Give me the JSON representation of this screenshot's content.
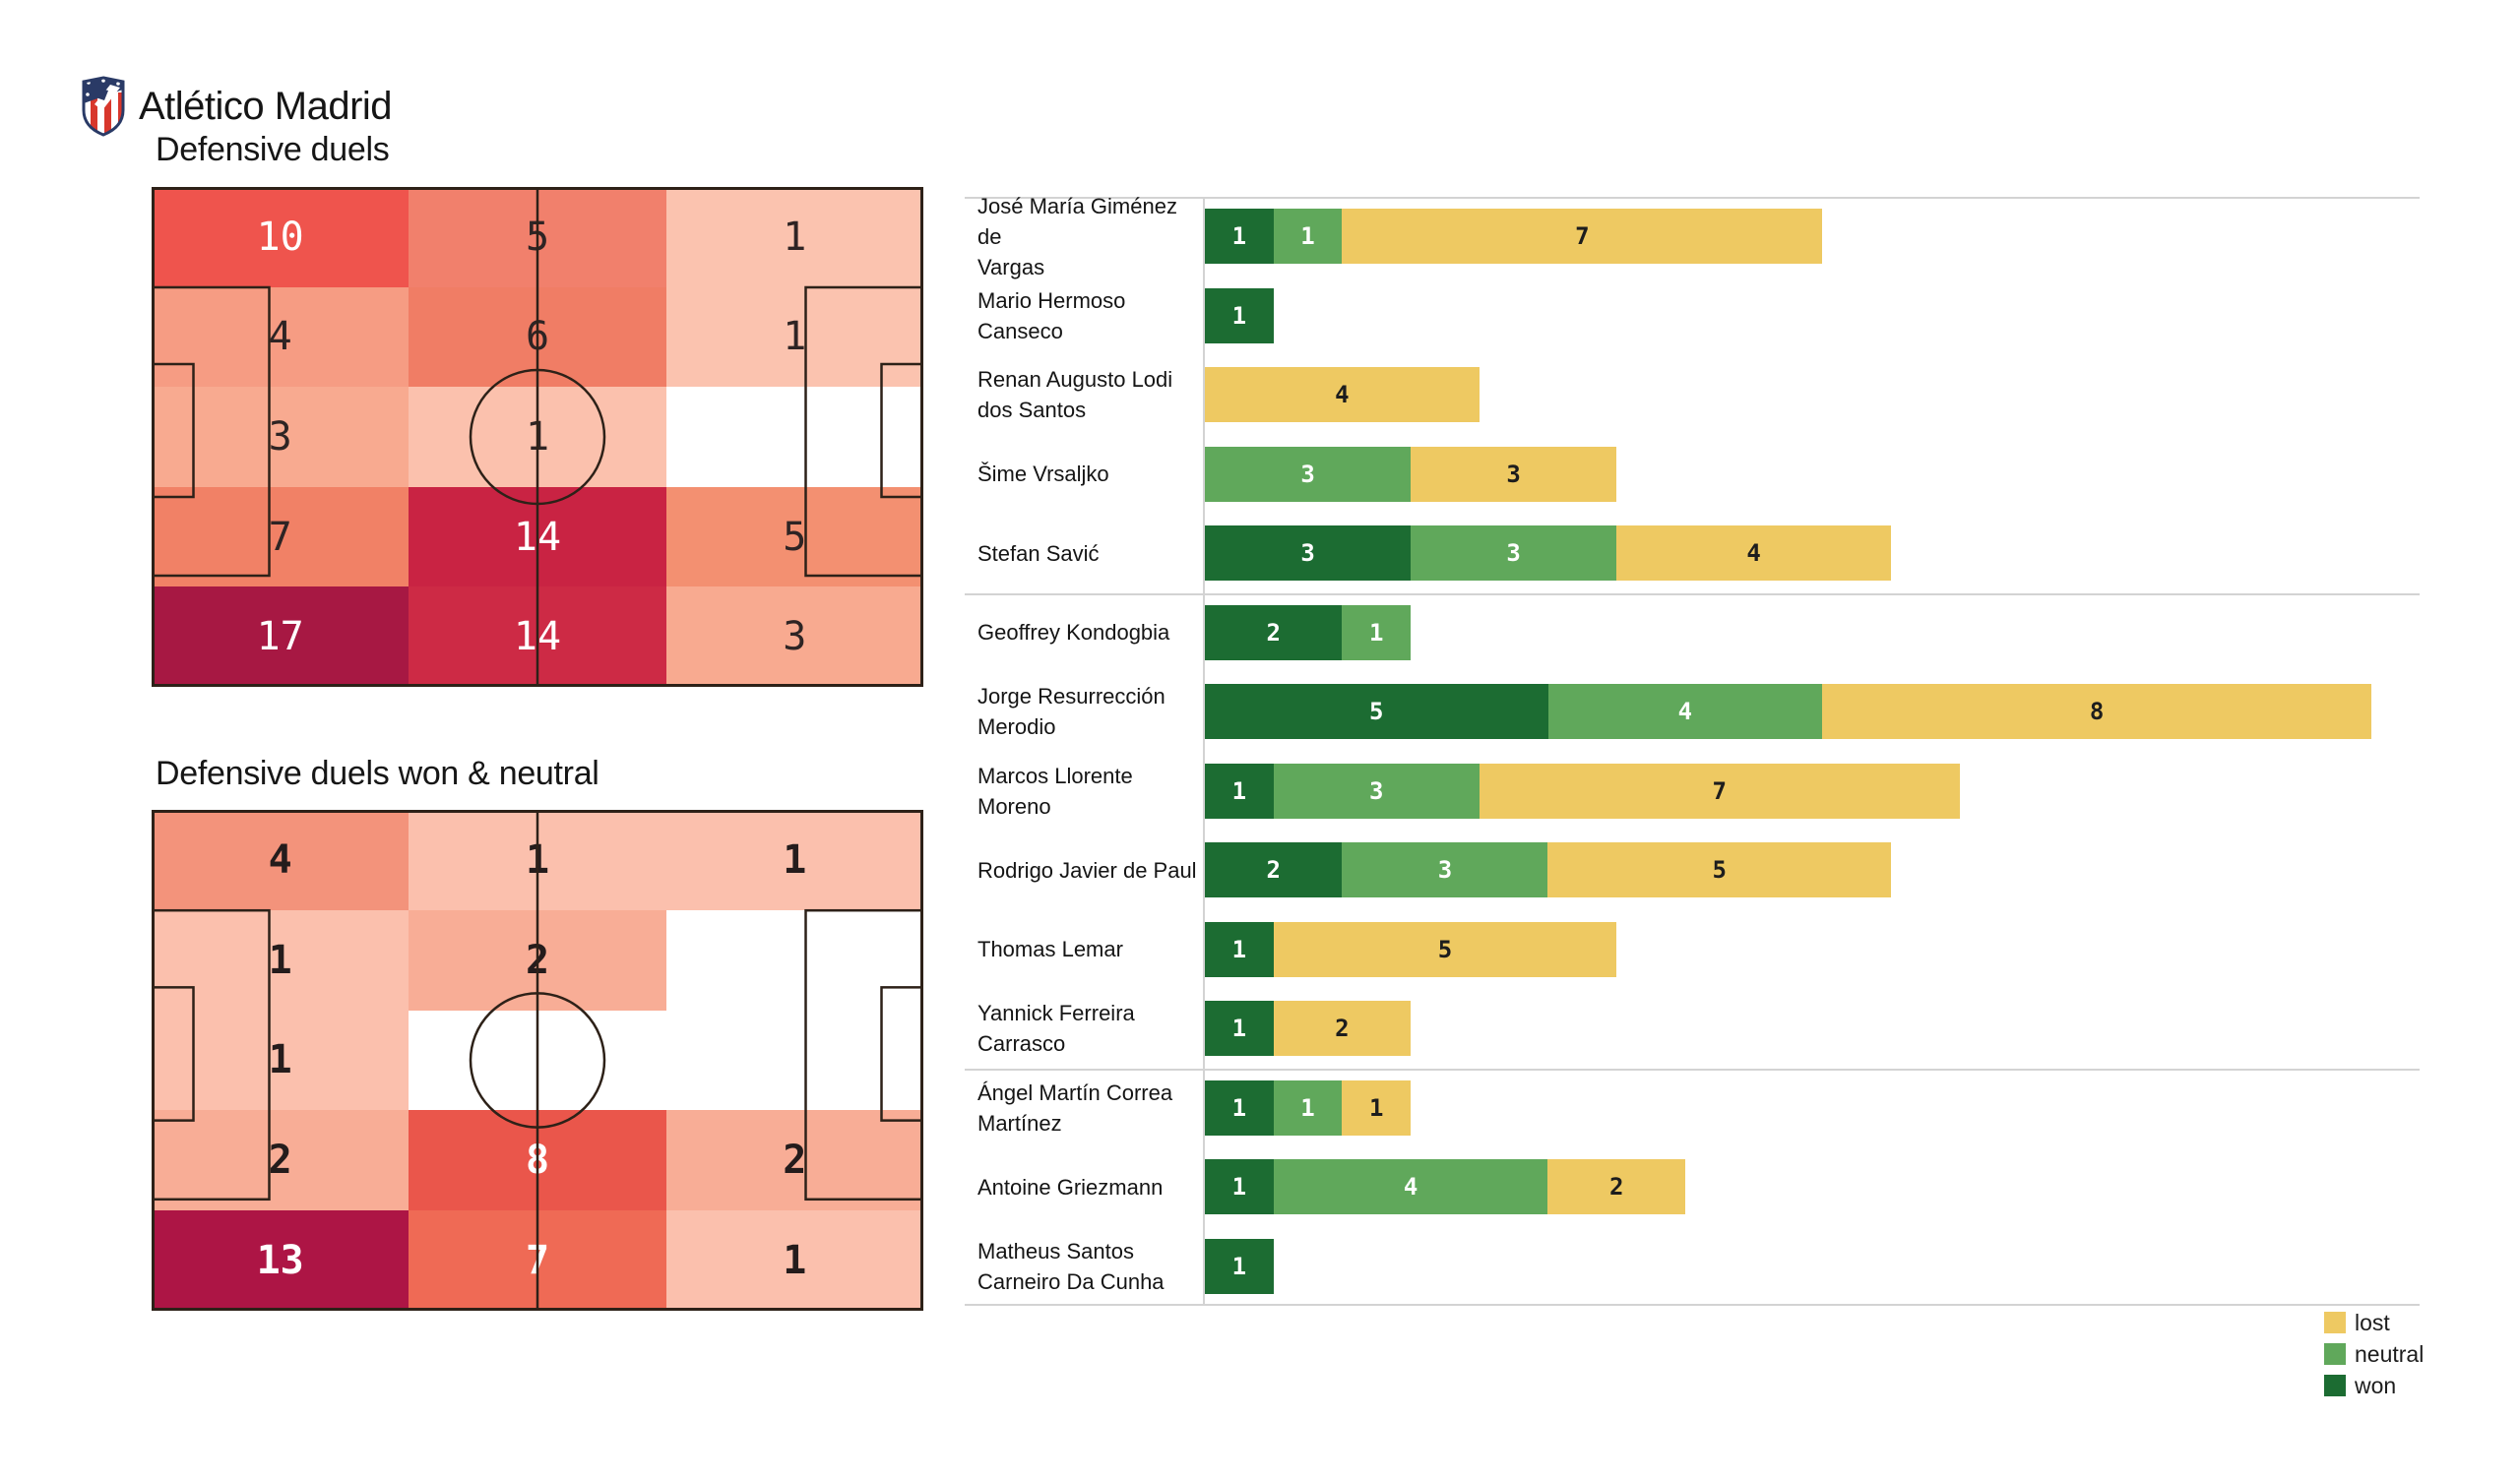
{
  "team": {
    "name": "Atlético Madrid"
  },
  "colors": {
    "won": "#1c6c32",
    "neutral": "#60a85b",
    "lost": "#eec962",
    "pitch_line": "#2d2118",
    "separator": "#d3d3d3",
    "text_dark": "#1d1d1d"
  },
  "heatmaps": [
    {
      "title": "Defensive duels",
      "bold_numbers": false,
      "cells": [
        [
          {
            "v": "10",
            "bg": "#ef544d",
            "fg": "#ffffff"
          },
          {
            "v": "5",
            "bg": "#f1806c",
            "fg": "#2e2424"
          },
          {
            "v": "1",
            "bg": "#fbc3af",
            "fg": "#2e2424"
          }
        ],
        [
          {
            "v": "4",
            "bg": "#f69c83",
            "fg": "#2e2424"
          },
          {
            "v": "6",
            "bg": "#f07d65",
            "fg": "#2e2424"
          },
          {
            "v": "1",
            "bg": "#fbc3af",
            "fg": "#2e2424"
          }
        ],
        [
          {
            "v": "3",
            "bg": "#f8aa90",
            "fg": "#2e2424"
          },
          {
            "v": "1",
            "bg": "#fbc1ad",
            "fg": "#2e2424"
          },
          {
            "v": "",
            "bg": "#ffffff",
            "fg": "#2e2424"
          }
        ],
        [
          {
            "v": "7",
            "bg": "#f18166",
            "fg": "#2e2424"
          },
          {
            "v": "14",
            "bg": "#c92343",
            "fg": "#ffffff"
          },
          {
            "v": "5",
            "bg": "#f39071",
            "fg": "#2e2424"
          }
        ],
        [
          {
            "v": "17",
            "bg": "#a71843",
            "fg": "#ffffff"
          },
          {
            "v": "14",
            "bg": "#cd2a45",
            "fg": "#ffffff"
          },
          {
            "v": "3",
            "bg": "#f8aa90",
            "fg": "#2e2424"
          }
        ]
      ]
    },
    {
      "title": "Defensive duels won & neutral",
      "bold_numbers": true,
      "cells": [
        [
          {
            "v": "4",
            "bg": "#f3937b",
            "fg": "#241c1c"
          },
          {
            "v": "1",
            "bg": "#fbc0ad",
            "fg": "#241c1c"
          },
          {
            "v": "1",
            "bg": "#fbc0ad",
            "fg": "#241c1c"
          }
        ],
        [
          {
            "v": "1",
            "bg": "#fbc0ad",
            "fg": "#241c1c"
          },
          {
            "v": "2",
            "bg": "#f8ad96",
            "fg": "#241c1c"
          },
          {
            "v": "",
            "bg": "#ffffff",
            "fg": "#241c1c"
          }
        ],
        [
          {
            "v": "1",
            "bg": "#fbc0ad",
            "fg": "#241c1c"
          },
          {
            "v": "",
            "bg": "#ffffff",
            "fg": "#241c1c"
          },
          {
            "v": "",
            "bg": "#ffffff",
            "fg": "#241c1c"
          }
        ],
        [
          {
            "v": "2",
            "bg": "#f8ad96",
            "fg": "#241c1c"
          },
          {
            "v": "8",
            "bg": "#ea564b",
            "fg": "#ffffff"
          },
          {
            "v": "2",
            "bg": "#f8ad96",
            "fg": "#241c1c"
          }
        ],
        [
          {
            "v": "13",
            "bg": "#ad1545",
            "fg": "#ffffff"
          },
          {
            "v": "7",
            "bg": "#ef6a55",
            "fg": "#ffffff"
          },
          {
            "v": "1",
            "bg": "#fbc0ad",
            "fg": "#241c1c"
          }
        ]
      ]
    }
  ],
  "duel_chart": {
    "players": [
      {
        "name_lines": [
          "José María Giménez de",
          "Vargas"
        ],
        "won": 1,
        "neutral": 1,
        "lost": 7
      },
      {
        "name_lines": [
          "Mario Hermoso",
          "Canseco"
        ],
        "won": 1,
        "neutral": 0,
        "lost": 0
      },
      {
        "name_lines": [
          "Renan Augusto Lodi",
          "dos Santos"
        ],
        "won": 0,
        "neutral": 0,
        "lost": 4
      },
      {
        "name_lines": [
          "Šime Vrsaljko"
        ],
        "won": 0,
        "neutral": 3,
        "lost": 3
      },
      {
        "name_lines": [
          "Stefan Savić"
        ],
        "won": 3,
        "neutral": 3,
        "lost": 4
      },
      {
        "name_lines": [
          "Geoffrey Kondogbia"
        ],
        "won": 2,
        "neutral": 1,
        "lost": 0
      },
      {
        "name_lines": [
          "Jorge Resurrección",
          "Merodio"
        ],
        "won": 5,
        "neutral": 4,
        "lost": 8
      },
      {
        "name_lines": [
          "Marcos Llorente",
          "Moreno"
        ],
        "won": 1,
        "neutral": 3,
        "lost": 7
      },
      {
        "name_lines": [
          "Rodrigo Javier de Paul"
        ],
        "won": 2,
        "neutral": 3,
        "lost": 5
      },
      {
        "name_lines": [
          "Thomas Lemar"
        ],
        "won": 1,
        "neutral": 0,
        "lost": 5
      },
      {
        "name_lines": [
          "Yannick Ferreira",
          "Carrasco"
        ],
        "won": 1,
        "neutral": 0,
        "lost": 2
      },
      {
        "name_lines": [
          "Ángel Martín Correa",
          "Martínez"
        ],
        "won": 1,
        "neutral": 1,
        "lost": 1
      },
      {
        "name_lines": [
          "Antoine Griezmann"
        ],
        "won": 1,
        "neutral": 4,
        "lost": 2
      },
      {
        "name_lines": [
          "Matheus Santos",
          "Carneiro Da Cunha"
        ],
        "won": 1,
        "neutral": 0,
        "lost": 0
      }
    ],
    "group_breaks_after": [
      5,
      11
    ],
    "legend": [
      {
        "label": "lost",
        "color": "#eec962"
      },
      {
        "label": "neutral",
        "color": "#60a85b"
      },
      {
        "label": "won",
        "color": "#1c6c32"
      }
    ]
  },
  "chart_data": [
    {
      "type": "heatmap",
      "title": "Defensive duels",
      "rows": 5,
      "cols": 3,
      "values": [
        [
          10,
          5,
          1
        ],
        [
          4,
          6,
          1
        ],
        [
          3,
          1,
          0
        ],
        [
          7,
          14,
          5
        ],
        [
          17,
          14,
          3
        ]
      ],
      "note": "football pitch zone grid, white=0 to deep crimson=max"
    },
    {
      "type": "heatmap",
      "title": "Defensive duels won & neutral",
      "rows": 5,
      "cols": 3,
      "values": [
        [
          4,
          1,
          1
        ],
        [
          1,
          2,
          0
        ],
        [
          1,
          0,
          0
        ],
        [
          2,
          8,
          2
        ],
        [
          13,
          7,
          1
        ]
      ]
    },
    {
      "type": "bar",
      "orientation": "horizontal",
      "stacked": true,
      "categories": [
        "José María Giménez de Vargas",
        "Mario Hermoso Canseco",
        "Renan Augusto Lodi dos Santos",
        "Šime Vrsaljko",
        "Stefan Savić",
        "Geoffrey Kondogbia",
        "Jorge Resurrección Merodio",
        "Marcos Llorente Moreno",
        "Rodrigo Javier de Paul",
        "Thomas Lemar",
        "Yannick Ferreira Carrasco",
        "Ángel Martín Correa Martínez",
        "Antoine Griezmann",
        "Matheus Santos Carneiro Da Cunha"
      ],
      "series": [
        {
          "name": "won",
          "color": "#1c6c32",
          "values": [
            1,
            1,
            0,
            0,
            3,
            2,
            5,
            1,
            2,
            1,
            1,
            1,
            1,
            1
          ]
        },
        {
          "name": "neutral",
          "color": "#60a85b",
          "values": [
            1,
            0,
            0,
            3,
            3,
            1,
            4,
            3,
            3,
            0,
            0,
            1,
            4,
            0
          ]
        },
        {
          "name": "lost",
          "color": "#eec962",
          "values": [
            7,
            0,
            4,
            3,
            4,
            0,
            8,
            7,
            5,
            5,
            2,
            1,
            2,
            0
          ]
        }
      ],
      "legend_position": "bottom-right",
      "grid": false
    }
  ]
}
